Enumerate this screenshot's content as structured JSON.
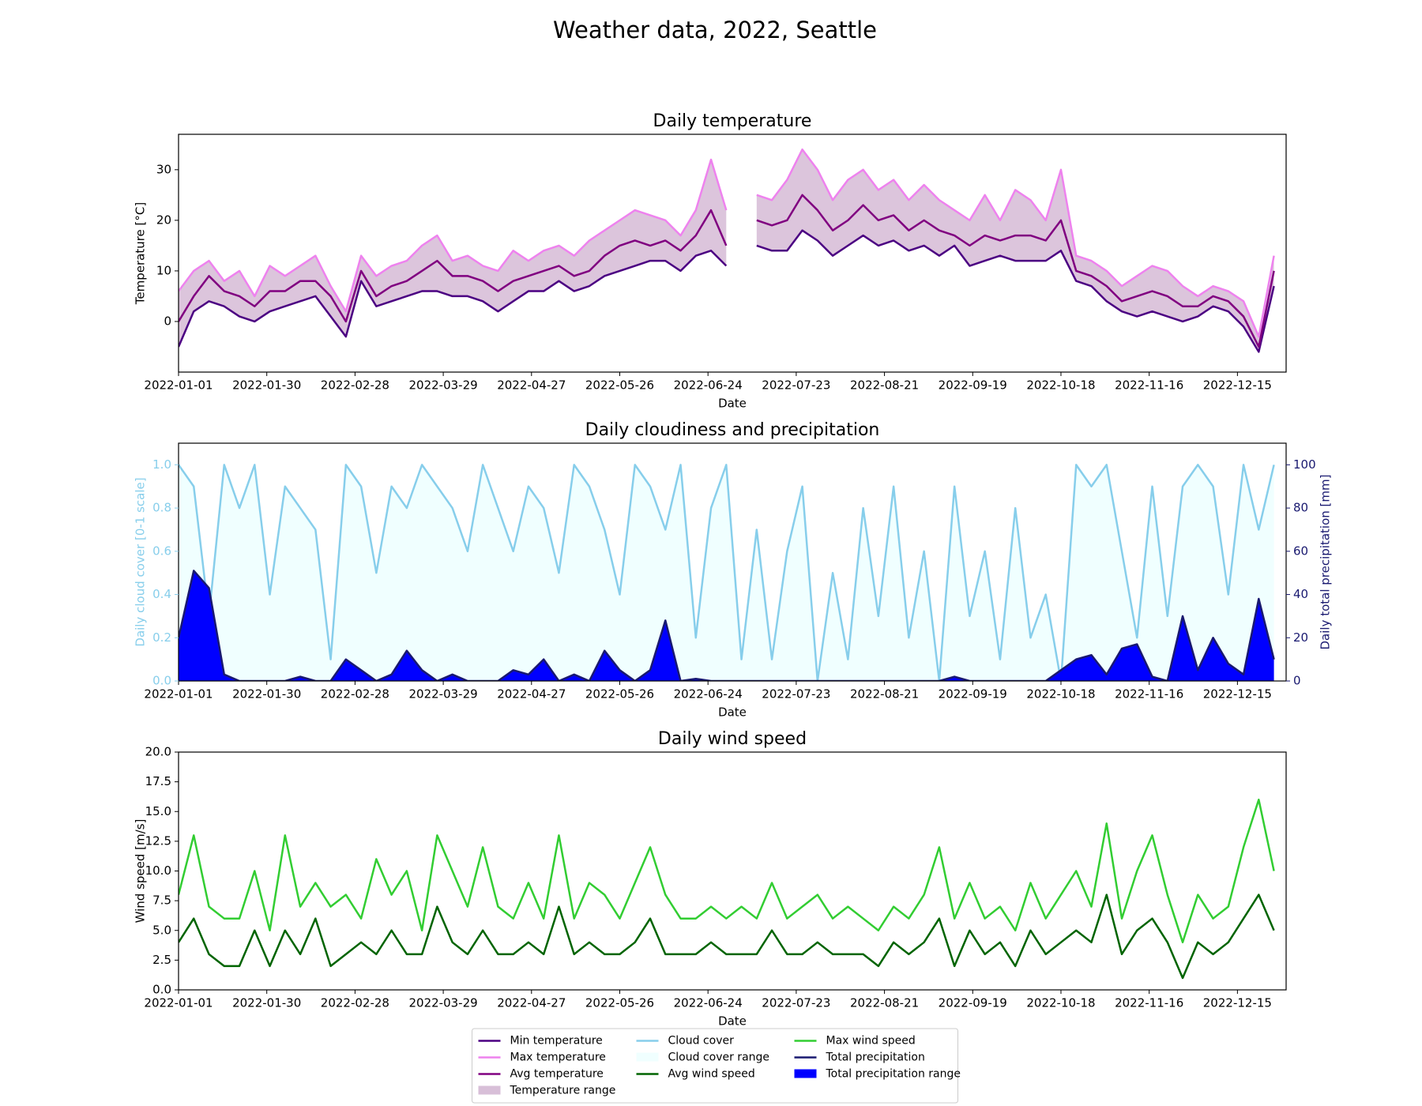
{
  "title": "Weather data, 2022, Seattle",
  "legend": {
    "loc": "lower center",
    "ncol": 3
  },
  "chart_data": [
    {
      "type": "line",
      "title": "Daily temperature",
      "xlabel": "Date",
      "ylabel": "Temperature [°C]",
      "x": [
        "2022-01-01",
        "2022-01-06",
        "2022-01-11",
        "2022-01-16",
        "2022-01-21",
        "2022-01-26",
        "2022-01-31",
        "2022-02-05",
        "2022-02-10",
        "2022-02-15",
        "2022-02-20",
        "2022-02-25",
        "2022-03-02",
        "2022-03-07",
        "2022-03-12",
        "2022-03-17",
        "2022-03-22",
        "2022-03-27",
        "2022-04-01",
        "2022-04-06",
        "2022-04-11",
        "2022-04-16",
        "2022-04-21",
        "2022-04-26",
        "2022-05-01",
        "2022-05-06",
        "2022-05-11",
        "2022-05-16",
        "2022-05-21",
        "2022-05-26",
        "2022-05-31",
        "2022-06-05",
        "2022-06-10",
        "2022-06-15",
        "2022-06-20",
        "2022-06-25",
        "2022-06-30",
        "2022-07-05",
        "2022-07-10",
        "2022-07-15",
        "2022-07-20",
        "2022-07-25",
        "2022-07-30",
        "2022-08-04",
        "2022-08-09",
        "2022-08-14",
        "2022-08-19",
        "2022-08-24",
        "2022-08-29",
        "2022-09-03",
        "2022-09-08",
        "2022-09-13",
        "2022-09-18",
        "2022-09-23",
        "2022-09-28",
        "2022-10-03",
        "2022-10-08",
        "2022-10-13",
        "2022-10-18",
        "2022-10-23",
        "2022-10-28",
        "2022-11-02",
        "2022-11-07",
        "2022-11-12",
        "2022-11-17",
        "2022-11-22",
        "2022-11-27",
        "2022-12-02",
        "2022-12-07",
        "2022-12-12",
        "2022-12-17",
        "2022-12-22",
        "2022-12-27"
      ],
      "xlim": [
        "2022-01-01",
        "2022-12-31"
      ],
      "xticks": [
        "2022-01-01",
        "2022-01-30",
        "2022-02-28",
        "2022-03-29",
        "2022-04-27",
        "2022-05-26",
        "2022-06-24",
        "2022-07-23",
        "2022-08-21",
        "2022-09-19",
        "2022-10-18",
        "2022-11-16",
        "2022-12-15"
      ],
      "ylim": [
        -10,
        37
      ],
      "yticks": [
        0,
        10,
        20,
        30
      ],
      "fill": {
        "name": "Temperature range",
        "color": "#d8bfd8"
      },
      "series": [
        {
          "name": "Min temperature",
          "color": "#4b0082",
          "values": [
            -5,
            2,
            4,
            3,
            1,
            0,
            2,
            3,
            4,
            5,
            1,
            -3,
            8,
            3,
            4,
            5,
            6,
            6,
            5,
            5,
            4,
            2,
            4,
            6,
            6,
            8,
            6,
            7,
            9,
            10,
            11,
            12,
            12,
            10,
            13,
            14,
            11,
            null,
            15,
            14,
            14,
            18,
            16,
            13,
            15,
            17,
            15,
            16,
            14,
            15,
            13,
            15,
            11,
            12,
            13,
            12,
            12,
            12,
            14,
            8,
            7,
            4,
            2,
            1,
            2,
            1,
            0,
            1,
            3,
            2,
            -1,
            -6,
            7
          ]
        },
        {
          "name": "Max temperature",
          "color": "#ee82ee",
          "values": [
            6,
            10,
            12,
            8,
            10,
            5,
            11,
            9,
            11,
            13,
            7,
            2,
            13,
            9,
            11,
            12,
            15,
            17,
            12,
            13,
            11,
            10,
            14,
            12,
            14,
            15,
            13,
            16,
            18,
            20,
            22,
            21,
            20,
            17,
            22,
            32,
            22,
            null,
            25,
            24,
            28,
            34,
            30,
            24,
            28,
            30,
            26,
            28,
            24,
            27,
            24,
            22,
            20,
            25,
            20,
            26,
            24,
            20,
            30,
            13,
            12,
            10,
            7,
            9,
            11,
            10,
            7,
            5,
            7,
            6,
            4,
            -3,
            13
          ]
        },
        {
          "name": "Avg temperature",
          "color": "#800080",
          "values": [
            0,
            5,
            9,
            6,
            5,
            3,
            6,
            6,
            8,
            8,
            5,
            0,
            10,
            5,
            7,
            8,
            10,
            12,
            9,
            9,
            8,
            6,
            8,
            9,
            10,
            11,
            9,
            10,
            13,
            15,
            16,
            15,
            16,
            14,
            17,
            22,
            15,
            null,
            20,
            19,
            20,
            25,
            22,
            18,
            20,
            23,
            20,
            21,
            18,
            20,
            18,
            17,
            15,
            17,
            16,
            17,
            17,
            16,
            20,
            10,
            9,
            7,
            4,
            5,
            6,
            5,
            3,
            3,
            5,
            4,
            1,
            -5,
            10
          ]
        }
      ]
    },
    {
      "type": "line",
      "title": "Daily cloudiness and precipitation",
      "xlabel": "Date",
      "ylabel": "Daily cloud cover [0-1 scale]",
      "y2label": "Daily total precipitation [mm]",
      "x": [
        "2022-01-01",
        "2022-01-06",
        "2022-01-11",
        "2022-01-16",
        "2022-01-21",
        "2022-01-26",
        "2022-01-31",
        "2022-02-05",
        "2022-02-10",
        "2022-02-15",
        "2022-02-20",
        "2022-02-25",
        "2022-03-02",
        "2022-03-07",
        "2022-03-12",
        "2022-03-17",
        "2022-03-22",
        "2022-03-27",
        "2022-04-01",
        "2022-04-06",
        "2022-04-11",
        "2022-04-16",
        "2022-04-21",
        "2022-04-26",
        "2022-05-01",
        "2022-05-06",
        "2022-05-11",
        "2022-05-16",
        "2022-05-21",
        "2022-05-26",
        "2022-05-31",
        "2022-06-05",
        "2022-06-10",
        "2022-06-15",
        "2022-06-20",
        "2022-06-25",
        "2022-06-30",
        "2022-07-05",
        "2022-07-10",
        "2022-07-15",
        "2022-07-20",
        "2022-07-25",
        "2022-07-30",
        "2022-08-04",
        "2022-08-09",
        "2022-08-14",
        "2022-08-19",
        "2022-08-24",
        "2022-08-29",
        "2022-09-03",
        "2022-09-08",
        "2022-09-13",
        "2022-09-18",
        "2022-09-23",
        "2022-09-28",
        "2022-10-03",
        "2022-10-08",
        "2022-10-13",
        "2022-10-18",
        "2022-10-23",
        "2022-10-28",
        "2022-11-02",
        "2022-11-07",
        "2022-11-12",
        "2022-11-17",
        "2022-11-22",
        "2022-11-27",
        "2022-12-02",
        "2022-12-07",
        "2022-12-12",
        "2022-12-17",
        "2022-12-22",
        "2022-12-27"
      ],
      "xlim": [
        "2022-01-01",
        "2022-12-31"
      ],
      "xticks": [
        "2022-01-01",
        "2022-01-30",
        "2022-02-28",
        "2022-03-29",
        "2022-04-27",
        "2022-05-26",
        "2022-06-24",
        "2022-07-23",
        "2022-08-21",
        "2022-09-19",
        "2022-10-18",
        "2022-11-16",
        "2022-12-15"
      ],
      "ylim": [
        0,
        1.1
      ],
      "yticks": [
        {
          "value": 0,
          "label": "0.0"
        },
        0.2,
        0.4,
        0.6,
        0.8,
        {
          "value": 1,
          "label": "1.0"
        }
      ],
      "y2lim": [
        0,
        110
      ],
      "y2ticks": [
        0,
        20,
        40,
        60,
        80,
        100
      ],
      "series": [
        {
          "name": "Cloud cover",
          "color": "#87ceeb",
          "fill": {
            "name": "Cloud cover range",
            "color": "#f0ffff"
          },
          "values": [
            1,
            0.9,
            0.3,
            1,
            0.8,
            1,
            0.4,
            0.9,
            0.8,
            0.7,
            0.1,
            1,
            0.9,
            0.5,
            0.9,
            0.8,
            1,
            0.9,
            0.8,
            0.6,
            1,
            0.8,
            0.6,
            0.9,
            0.8,
            0.5,
            1,
            0.9,
            0.7,
            0.4,
            1,
            0.9,
            0.7,
            1,
            0.2,
            0.8,
            1,
            0.1,
            0.7,
            0.1,
            0.6,
            0.9,
            0,
            0.5,
            0.1,
            0.8,
            0.3,
            0.9,
            0.2,
            0.6,
            0,
            0.9,
            0.3,
            0.6,
            0.1,
            0.8,
            0.2,
            0.4,
            0,
            1,
            0.9,
            1,
            0.6,
            0.2,
            0.9,
            0.3,
            0.9,
            1,
            0.9,
            0.4,
            1,
            0.7,
            1
          ]
        },
        {
          "name": "Total precipitation",
          "color": "#191970",
          "axis": "y2",
          "fill": {
            "name": "Total precipitation range",
            "color": "#0000ff"
          },
          "values": [
            20,
            51,
            43,
            3,
            0,
            0,
            0,
            0,
            2,
            0,
            0,
            10,
            5,
            0,
            3,
            14,
            5,
            0,
            3,
            0,
            0,
            0,
            5,
            3,
            10,
            0,
            3,
            0,
            14,
            5,
            0,
            5,
            28,
            0,
            1,
            0,
            0,
            0,
            0,
            0,
            0,
            0,
            0,
            0,
            0,
            0,
            0,
            0,
            0,
            0,
            0,
            2,
            0,
            0,
            0,
            0,
            0,
            0,
            5,
            10,
            12,
            3,
            15,
            17,
            2,
            0,
            30,
            5,
            20,
            8,
            3,
            38,
            10
          ]
        }
      ]
    },
    {
      "type": "line",
      "title": "Daily wind speed",
      "xlabel": "Date",
      "ylabel": "Wind speed [m/s]",
      "x": [
        "2022-01-01",
        "2022-01-06",
        "2022-01-11",
        "2022-01-16",
        "2022-01-21",
        "2022-01-26",
        "2022-01-31",
        "2022-02-05",
        "2022-02-10",
        "2022-02-15",
        "2022-02-20",
        "2022-02-25",
        "2022-03-02",
        "2022-03-07",
        "2022-03-12",
        "2022-03-17",
        "2022-03-22",
        "2022-03-27",
        "2022-04-01",
        "2022-04-06",
        "2022-04-11",
        "2022-04-16",
        "2022-04-21",
        "2022-04-26",
        "2022-05-01",
        "2022-05-06",
        "2022-05-11",
        "2022-05-16",
        "2022-05-21",
        "2022-05-26",
        "2022-05-31",
        "2022-06-05",
        "2022-06-10",
        "2022-06-15",
        "2022-06-20",
        "2022-06-25",
        "2022-06-30",
        "2022-07-05",
        "2022-07-10",
        "2022-07-15",
        "2022-07-20",
        "2022-07-25",
        "2022-07-30",
        "2022-08-04",
        "2022-08-09",
        "2022-08-14",
        "2022-08-19",
        "2022-08-24",
        "2022-08-29",
        "2022-09-03",
        "2022-09-08",
        "2022-09-13",
        "2022-09-18",
        "2022-09-23",
        "2022-09-28",
        "2022-10-03",
        "2022-10-08",
        "2022-10-13",
        "2022-10-18",
        "2022-10-23",
        "2022-10-28",
        "2022-11-02",
        "2022-11-07",
        "2022-11-12",
        "2022-11-17",
        "2022-11-22",
        "2022-11-27",
        "2022-12-02",
        "2022-12-07",
        "2022-12-12",
        "2022-12-17",
        "2022-12-22",
        "2022-12-27"
      ],
      "xlim": [
        "2022-01-01",
        "2022-12-31"
      ],
      "xticks": [
        "2022-01-01",
        "2022-01-30",
        "2022-02-28",
        "2022-03-29",
        "2022-04-27",
        "2022-05-26",
        "2022-06-24",
        "2022-07-23",
        "2022-08-21",
        "2022-09-19",
        "2022-10-18",
        "2022-11-16",
        "2022-12-15"
      ],
      "ylim": [
        0,
        20
      ],
      "yticks": [
        {
          "value": 0,
          "label": "0.0"
        },
        2.5,
        {
          "value": 5,
          "label": "5.0"
        },
        7.5,
        {
          "value": 10,
          "label": "10.0"
        },
        12.5,
        {
          "value": 15,
          "label": "15.0"
        },
        17.5,
        {
          "value": 20,
          "label": "20.0"
        }
      ],
      "series": [
        {
          "name": "Max wind speed",
          "color": "#32cd32",
          "values": [
            8,
            13,
            7,
            6,
            6,
            10,
            5,
            13,
            7,
            9,
            7,
            8,
            6,
            11,
            8,
            10,
            5,
            13,
            10,
            7,
            12,
            7,
            6,
            9,
            6,
            13,
            6,
            9,
            8,
            6,
            9,
            12,
            8,
            6,
            6,
            7,
            6,
            7,
            6,
            9,
            6,
            7,
            8,
            6,
            7,
            6,
            5,
            7,
            6,
            8,
            12,
            6,
            9,
            6,
            7,
            5,
            9,
            6,
            8,
            10,
            7,
            14,
            6,
            10,
            13,
            8,
            4,
            8,
            6,
            7,
            12,
            16,
            10
          ]
        },
        {
          "name": "Avg wind speed",
          "color": "#006400",
          "values": [
            4,
            6,
            3,
            2,
            2,
            5,
            2,
            5,
            3,
            6,
            2,
            3,
            4,
            3,
            5,
            3,
            3,
            7,
            4,
            3,
            5,
            3,
            3,
            4,
            3,
            7,
            3,
            4,
            3,
            3,
            4,
            6,
            3,
            3,
            3,
            4,
            3,
            3,
            3,
            5,
            3,
            3,
            4,
            3,
            3,
            3,
            2,
            4,
            3,
            4,
            6,
            2,
            5,
            3,
            4,
            2,
            5,
            3,
            4,
            5,
            4,
            8,
            3,
            5,
            6,
            4,
            1,
            4,
            3,
            4,
            6,
            8,
            5
          ]
        }
      ]
    }
  ]
}
